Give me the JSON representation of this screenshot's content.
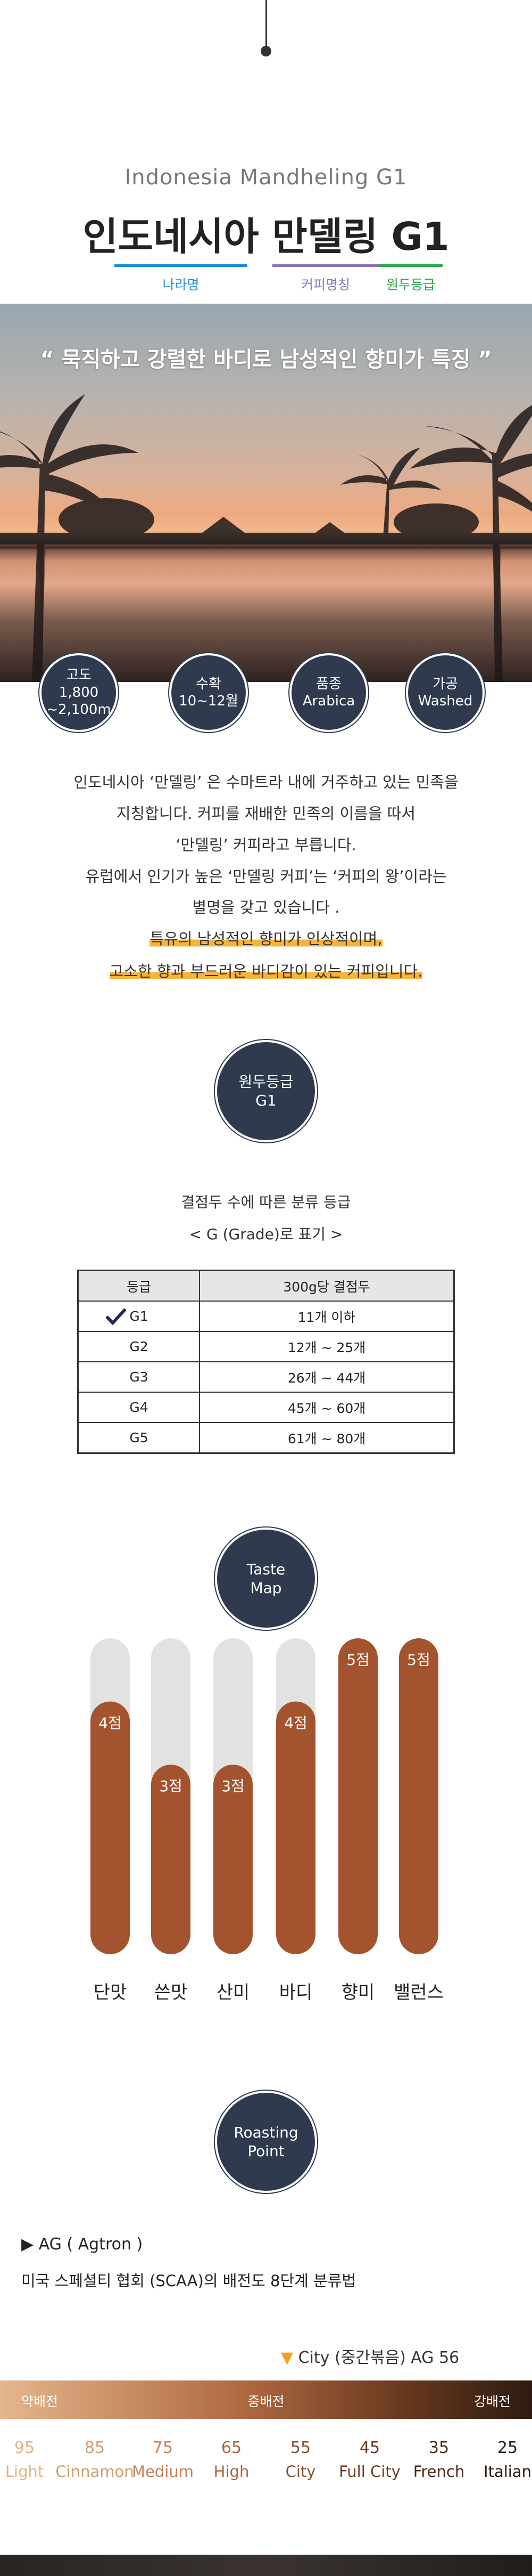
{
  "intro": {
    "subtitle": "Indonesia Mandheling G1",
    "title": "인도네시아 만델링 G1",
    "tags": [
      "나라명",
      "커피명칭",
      "원두등급"
    ]
  },
  "hero": {
    "quote": "“ 묵직하고 강렬한 바디로 남성적인 향미가 특징 ”"
  },
  "specs": [
    {
      "lines": [
        "고도",
        "1,800",
        "~2,100m"
      ]
    },
    {
      "lines": [
        "수확",
        "10~12월"
      ]
    },
    {
      "lines": [
        "품종",
        "Arabica"
      ]
    },
    {
      "lines": [
        "가공",
        "Washed"
      ]
    }
  ],
  "description": {
    "lines": [
      "인도네시아 ‘만델링’ 은 수마트라 내에 거주하고 있는 민족을",
      "지칭합니다. 커피를 재배한 민족의 이름을 따서",
      "‘만델링’ 커피라고 부릅니다.",
      "유럽에서 인기가 높은 ‘만델링 커피’는 ‘커피의 왕’이라는",
      "별명을 갖고 있습니다 ."
    ],
    "highlight": [
      "특유의 남성적인 향미가 인상적이며,",
      "고소한 향과 부드러운 바디감이 있는 커피입니다."
    ]
  },
  "grade": {
    "badge": [
      "원두등급",
      "G1"
    ],
    "caption": "결점두 수에 따른 분류 등급",
    "note": "< G (Grade)로 표기 >",
    "table": {
      "header": [
        "등급",
        "300g당 결점두"
      ],
      "rows": [
        [
          "G1",
          "11개 이하"
        ],
        [
          "G2",
          "12개 ~ 25개"
        ],
        [
          "G3",
          "26개 ~ 44개"
        ],
        [
          "G4",
          "45개 ~ 60개"
        ],
        [
          "G5",
          "61개 ~ 80개"
        ]
      ]
    }
  },
  "taste_map": {
    "badge": [
      "Taste",
      "Map"
    ],
    "ylim": [
      0,
      5
    ],
    "items": [
      {
        "name": "단맛",
        "value": 4,
        "value_label": "4점"
      },
      {
        "name": "쓴맛",
        "value": 3,
        "value_label": "3점"
      },
      {
        "name": "산미",
        "value": 3,
        "value_label": "3점"
      },
      {
        "name": "바디",
        "value": 4,
        "value_label": "4점"
      },
      {
        "name": "향미",
        "value": 5,
        "value_label": "5점"
      },
      {
        "name": "밸런스",
        "value": 5,
        "value_label": "5점"
      }
    ]
  },
  "roasting": {
    "badge": [
      "Roasting",
      "Point"
    ],
    "heading": {
      "icon": "▶",
      "text": "AG ( Agtron )"
    },
    "description": "미국 스페셜티 협회 (SCAA)의 배전도 8단계 분류법",
    "marker": {
      "icon": "▼",
      "text": "City (중간볶음) AG 56"
    },
    "bands": [
      "약배전",
      "중배전",
      "강배전"
    ],
    "scale": [
      {
        "ag": 95,
        "name": "Light"
      },
      {
        "ag": 85,
        "name": "Cinnamon"
      },
      {
        "ag": 75,
        "name": "Medium"
      },
      {
        "ag": 65,
        "name": "High"
      },
      {
        "ag": 55,
        "name": "City"
      },
      {
        "ag": 45,
        "name": "Full City"
      },
      {
        "ag": 35,
        "name": "French"
      },
      {
        "ag": 25,
        "name": "Italian"
      }
    ]
  }
}
